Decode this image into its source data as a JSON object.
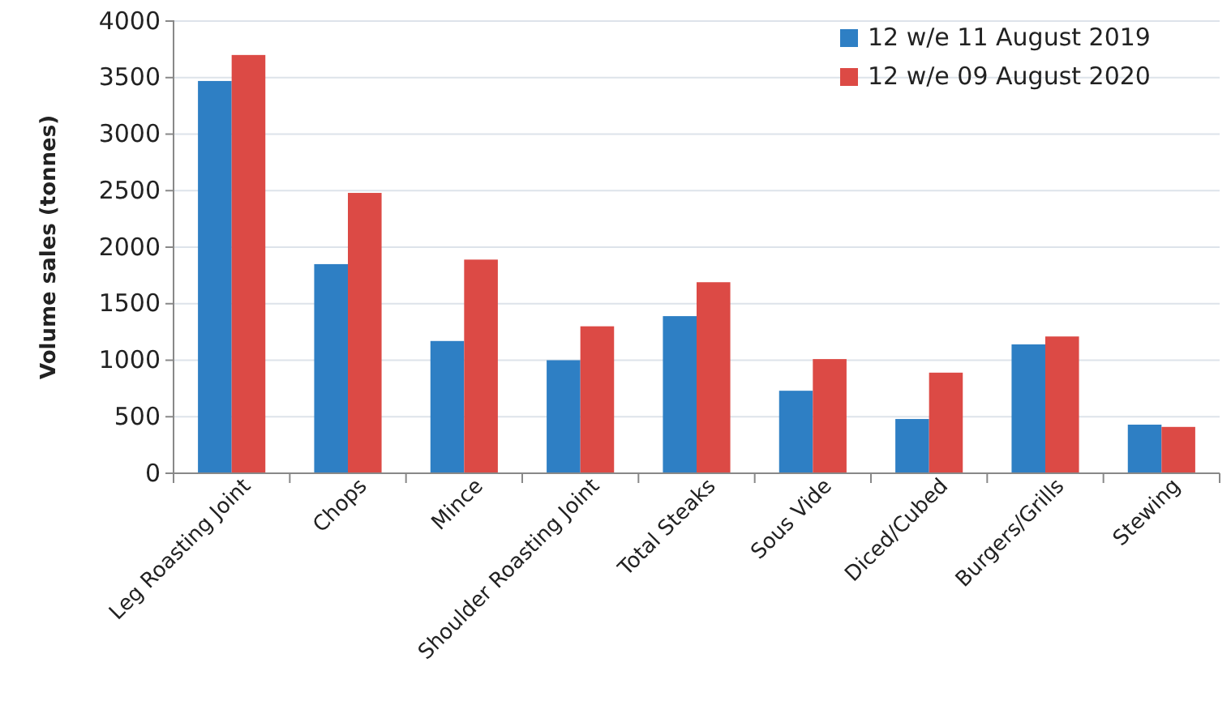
{
  "chart_data": {
    "type": "bar",
    "ylabel": "Volume sales (tonnes)",
    "categories": [
      "Leg Roasting Joint",
      "Chops",
      "Mince",
      "Shoulder Roasting Joint",
      "Total Steaks",
      "Sous Vide",
      "Diced/Cubed",
      "Burgers/Grills",
      "Stewing"
    ],
    "series": [
      {
        "name": "12 w/e 11 August 2019",
        "color": "#2e7fc4",
        "values": [
          3470,
          1850,
          1170,
          1000,
          1390,
          730,
          480,
          1140,
          430
        ]
      },
      {
        "name": "12 w/e 09 August 2020",
        "color": "#dc4a45",
        "values": [
          3700,
          2480,
          1890,
          1300,
          1690,
          1010,
          890,
          1210,
          410
        ]
      }
    ],
    "ylim": [
      0,
      4000
    ],
    "yticks": [
      0,
      500,
      1000,
      1500,
      2000,
      2500,
      3000,
      3500,
      4000
    ],
    "grid": "y",
    "legend": "top right"
  }
}
